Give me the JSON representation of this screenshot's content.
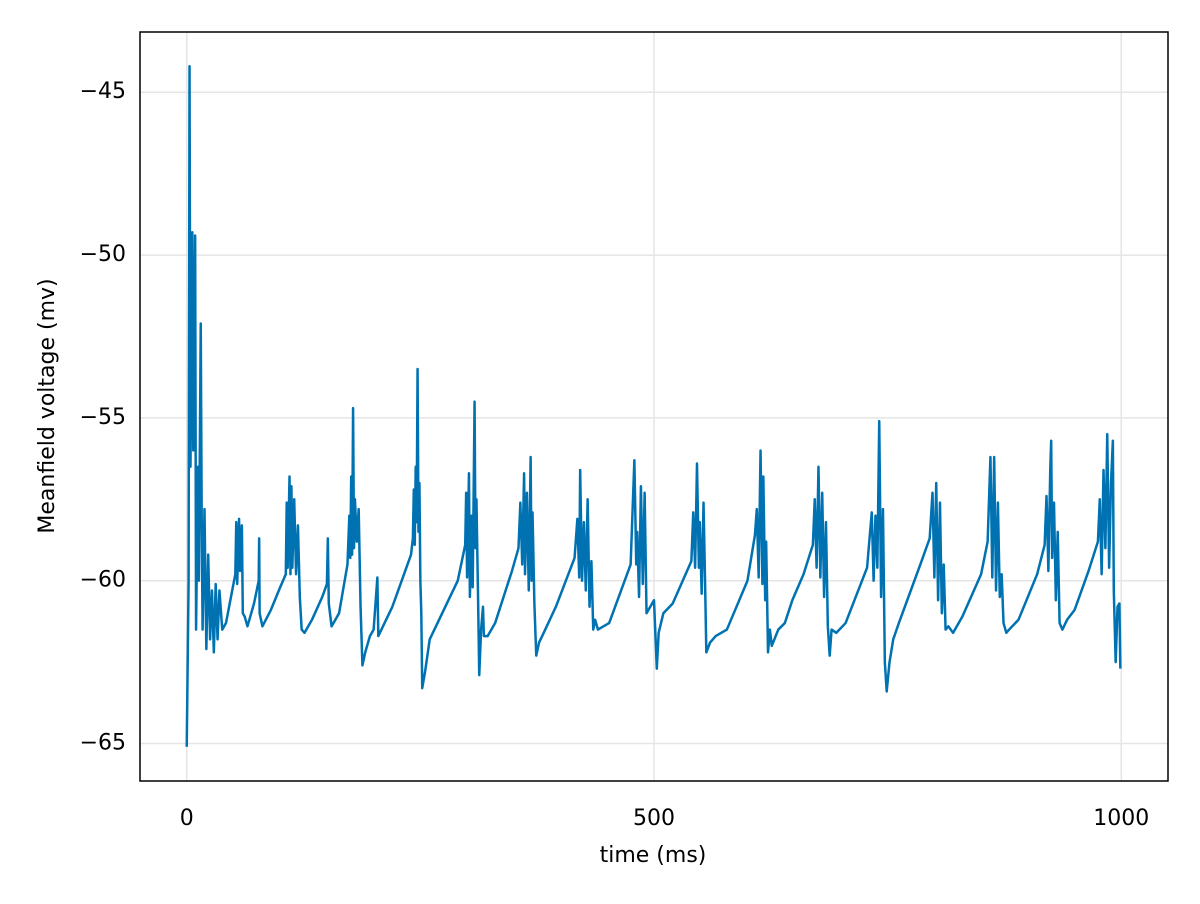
{
  "chart_data": {
    "type": "line",
    "xlabel": "time (ms)",
    "ylabel": "Meanfield voltage (mv)",
    "xlim": [
      -50,
      1050
    ],
    "ylim": [
      -66.15,
      -43.15
    ],
    "xticks": [
      0,
      500,
      1000
    ],
    "yticks": [
      {
        "value": -65,
        "label": "−65"
      },
      {
        "value": -60,
        "label": "−60"
      },
      {
        "value": -55,
        "label": "−55"
      },
      {
        "value": -50,
        "label": "−50"
      },
      {
        "value": -45,
        "label": "−45"
      }
    ],
    "grid": true,
    "color": "#0072b2",
    "x": [
      0,
      2,
      3,
      4,
      6,
      7,
      9,
      10,
      12,
      13,
      15,
      16,
      17,
      19,
      20,
      21,
      23,
      25,
      27,
      29,
      31,
      33,
      35,
      38,
      42,
      48,
      52,
      53,
      54,
      56,
      57,
      59,
      60,
      62,
      65,
      72,
      77,
      77.5,
      78,
      81,
      90,
      100,
      106,
      107,
      108,
      110,
      111,
      112,
      113,
      115,
      117,
      119,
      121,
      123,
      126,
      134,
      145,
      150,
      151,
      152,
      155,
      163,
      172,
      174,
      175,
      176,
      177,
      178,
      179,
      180,
      182,
      184,
      186,
      188,
      191,
      196,
      200,
      204,
      205,
      220,
      240,
      242,
      243,
      244,
      245,
      246,
      247,
      248,
      249,
      250,
      251,
      252,
      255,
      260,
      270,
      290,
      298,
      299,
      300,
      302,
      303,
      305,
      306,
      308,
      309,
      310,
      312,
      313,
      315,
      317,
      318,
      322,
      330,
      348,
      355,
      357,
      359,
      361,
      362,
      364,
      366,
      368,
      369,
      370,
      372,
      374,
      377,
      382,
      395,
      415,
      418,
      420,
      421,
      423,
      425,
      427,
      429,
      431,
      433,
      435,
      437,
      440,
      452,
      475,
      479,
      481,
      482,
      484,
      486,
      488,
      490,
      492,
      500,
      503,
      505,
      510,
      520,
      540,
      542,
      544,
      546,
      548,
      549,
      551,
      553,
      555,
      556,
      560,
      566,
      578,
      600,
      608,
      610,
      612,
      614,
      616,
      617,
      619,
      620,
      622,
      624,
      626,
      633,
      640,
      648,
      660,
      670,
      672,
      674,
      676,
      678,
      680,
      682,
      684,
      686,
      688,
      690,
      695,
      705,
      728,
      733,
      735,
      737,
      739,
      741,
      743,
      745,
      747,
      749,
      752,
      756,
      762,
      785,
      795,
      798,
      800,
      802,
      804,
      806,
      808,
      810,
      812,
      815,
      820,
      830,
      850,
      857,
      860,
      862,
      864,
      866,
      868,
      870,
      872,
      874,
      877,
      880,
      890,
      910,
      918,
      920,
      922,
      924,
      925,
      926,
      928,
      930,
      932,
      934,
      937,
      942,
      950,
      965,
      975,
      977,
      979,
      981,
      983,
      985,
      987,
      989,
      991,
      992,
      994,
      996,
      998,
      999
    ],
    "values": [
      -65.1,
      -60,
      -44.2,
      -56.5,
      -49.3,
      -56,
      -49.4,
      -61.5,
      -56.5,
      -60,
      -52.1,
      -58,
      -61.5,
      -57.8,
      -60,
      -62.1,
      -59.2,
      -61.8,
      -60.3,
      -62.2,
      -60.1,
      -61.8,
      -60.3,
      -61.5,
      -61.3,
      -60.4,
      -59.8,
      -58.2,
      -60.1,
      -58.1,
      -59.7,
      -58.3,
      -61,
      -61.1,
      -61.4,
      -60.7,
      -60,
      -58.7,
      -61,
      -61.4,
      -60.9,
      -60.2,
      -59.8,
      -57.6,
      -59.6,
      -56.8,
      -59.8,
      -57.1,
      -59.6,
      -57.5,
      -59.8,
      -58.3,
      -60.5,
      -61.5,
      -61.6,
      -61.2,
      -60.5,
      -60.1,
      -58.7,
      -60.7,
      -61.4,
      -61,
      -59.5,
      -58,
      -59.3,
      -56.8,
      -59.2,
      -54.7,
      -59,
      -57.5,
      -58.8,
      -57.8,
      -60.8,
      -62.6,
      -62.2,
      -61.7,
      -61.5,
      -59.9,
      -61.7,
      -60.8,
      -59.2,
      -58.7,
      -57.2,
      -58.9,
      -56.5,
      -58.2,
      -53.5,
      -58.5,
      -57,
      -60,
      -61,
      -63.3,
      -62.8,
      -61.8,
      -61.2,
      -60,
      -58.9,
      -57.3,
      -59.9,
      -56.7,
      -60.5,
      -58,
      -60.2,
      -54.5,
      -59,
      -57.5,
      -61,
      -62.9,
      -61.5,
      -60.8,
      -61.7,
      -61.7,
      -61.3,
      -59.7,
      -59,
      -57.6,
      -59.5,
      -56.7,
      -59.8,
      -57.3,
      -60.3,
      -56.2,
      -60,
      -57.9,
      -60.7,
      -62.3,
      -61.9,
      -61.6,
      -60.8,
      -59.3,
      -58.1,
      -59.9,
      -56.6,
      -60,
      -58.2,
      -60.3,
      -57.5,
      -60.8,
      -59.4,
      -61.5,
      -61.2,
      -61.5,
      -61.3,
      -59.5,
      -56.3,
      -59.5,
      -58.5,
      -60.5,
      -57.1,
      -60.1,
      -57.3,
      -61,
      -60.6,
      -62.7,
      -61.6,
      -61,
      -60.7,
      -59.4,
      -57.9,
      -59.6,
      -56.4,
      -59.6,
      -58.2,
      -60.4,
      -57.6,
      -60.6,
      -62.2,
      -61.9,
      -61.7,
      -61.5,
      -60,
      -58.6,
      -57.8,
      -59.9,
      -56,
      -60.1,
      -56.8,
      -60.6,
      -58.8,
      -62.2,
      -61.5,
      -62,
      -61.5,
      -61.3,
      -60.6,
      -59.8,
      -58.9,
      -57.5,
      -59.6,
      -56.5,
      -59.9,
      -57.3,
      -60.5,
      -58.2,
      -61.4,
      -62.3,
      -61.5,
      -61.6,
      -61.3,
      -59.6,
      -57.9,
      -60,
      -58,
      -59.6,
      -55.1,
      -60.5,
      -57.8,
      -62.5,
      -63.4,
      -62.5,
      -61.8,
      -61.3,
      -59.5,
      -58.7,
      -57.3,
      -59.9,
      -57,
      -60.6,
      -57.6,
      -61,
      -59.5,
      -61.5,
      -61.4,
      -61.6,
      -61.1,
      -59.8,
      -58.8,
      -56.2,
      -59.9,
      -56.2,
      -60.3,
      -57.6,
      -60.5,
      -59.8,
      -61.3,
      -61.6,
      -61.5,
      -61.2,
      -59.8,
      -58.9,
      -57.4,
      -59.7,
      -56.6,
      -55.7,
      -59.3,
      -57.6,
      -60.6,
      -58.5,
      -61.3,
      -61.5,
      -61.2,
      -60.9,
      -59.7,
      -58.8,
      -57.5,
      -59.8,
      -56.6,
      -59,
      -55.5,
      -59.6,
      -57,
      -55.7,
      -60.3,
      -62.5,
      -60.8,
      -60.7,
      -62.7
    ]
  }
}
